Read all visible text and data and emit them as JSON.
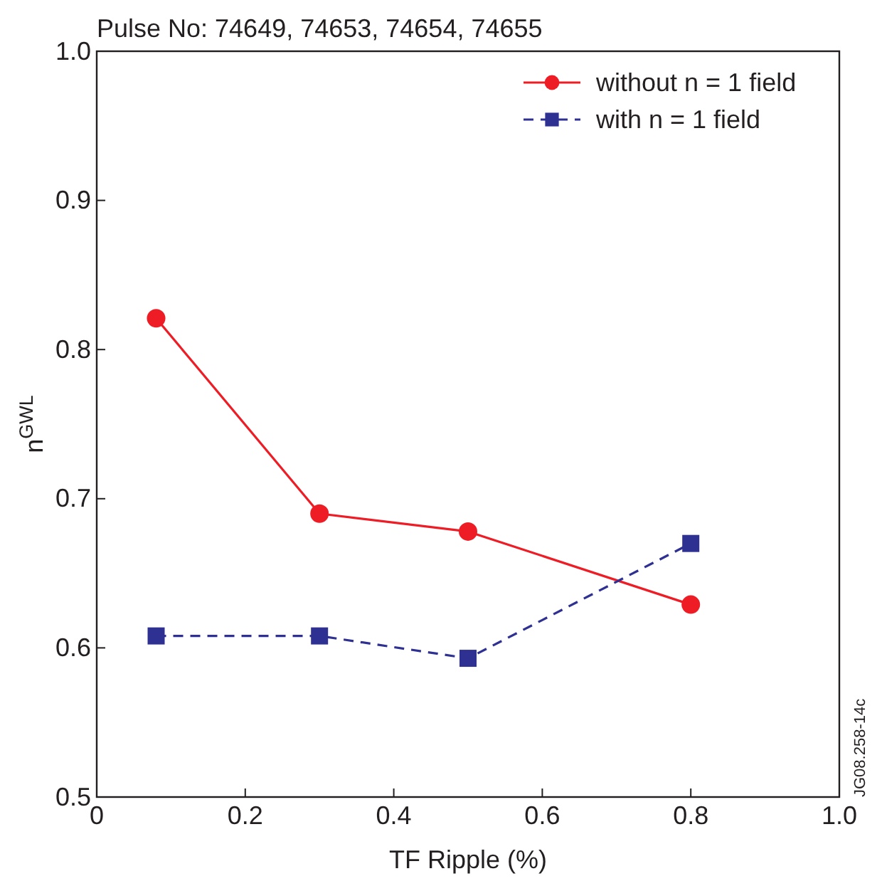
{
  "chart_data": {
    "type": "line",
    "title": "Pulse No: 74649, 74653, 74654, 74655",
    "xlabel": "TF Ripple (%)",
    "ylabel": "n$^{GWL}$",
    "annotations": [
      "JG08.258-14c"
    ],
    "series": [
      {
        "name": "without n = 1 field",
        "color": "#ee1c25",
        "x": [
          0.08,
          0.3,
          0.5,
          0.8
        ],
        "values": [
          0.821,
          0.69,
          0.678,
          0.629
        ],
        "marker": "circle",
        "line_style": "solid"
      },
      {
        "name": "with n = 1 field",
        "color": "#2e3192",
        "x": [
          0.08,
          0.3,
          0.5,
          0.8
        ],
        "values": [
          0.608,
          0.608,
          0.593,
          0.67
        ],
        "marker": "square",
        "line_style": "dashed"
      }
    ],
    "xlim": [
      0,
      1.0
    ],
    "xticks": [
      0,
      0.2,
      0.4,
      0.6,
      0.8,
      {
        "value": 1.0,
        "label": "1.0"
      }
    ],
    "ylim": [
      0.5,
      1.0
    ],
    "yticks": [
      0.5,
      0.6,
      0.7,
      0.8,
      0.9,
      {
        "value": 1.0,
        "label": "1.0"
      }
    ],
    "grid": false,
    "legend": "top right"
  }
}
